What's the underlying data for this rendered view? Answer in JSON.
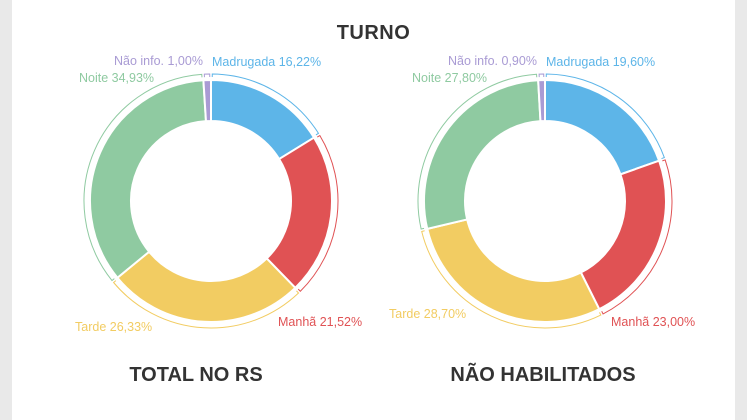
{
  "title": "TURNO",
  "colors": {
    "madrugada": "#5db5e8",
    "manha": "#e05254",
    "tarde": "#f2cc62",
    "noite": "#8fcaa1",
    "nao_info": "#a99bd4"
  },
  "chart_data": [
    {
      "type": "pie",
      "caption": "TOTAL NO RS",
      "slices": [
        {
          "label": "Madrugada 16,22%",
          "value": 16.22,
          "color_key": "madrugada"
        },
        {
          "label": "Manhã 21,52%",
          "value": 21.52,
          "color_key": "manha"
        },
        {
          "label": "Tarde 26,33%",
          "value": 26.33,
          "color_key": "tarde"
        },
        {
          "label": "Noite 34,93%",
          "value": 34.93,
          "color_key": "noite"
        },
        {
          "label": "Não info. 1,00%",
          "value": 1.0,
          "color_key": "nao_info"
        }
      ]
    },
    {
      "type": "pie",
      "caption": "NÃO HABILITADOS",
      "slices": [
        {
          "label": "Madrugada 19,60%",
          "value": 19.6,
          "color_key": "madrugada"
        },
        {
          "label": "Manhã 23,00%",
          "value": 23.0,
          "color_key": "manha"
        },
        {
          "label": "Tarde 28,70%",
          "value": 28.7,
          "color_key": "tarde"
        },
        {
          "label": "Noite 27,80%",
          "value": 27.8,
          "color_key": "noite"
        },
        {
          "label": "Não info. 0,90%",
          "value": 0.9,
          "color_key": "nao_info"
        }
      ]
    }
  ]
}
